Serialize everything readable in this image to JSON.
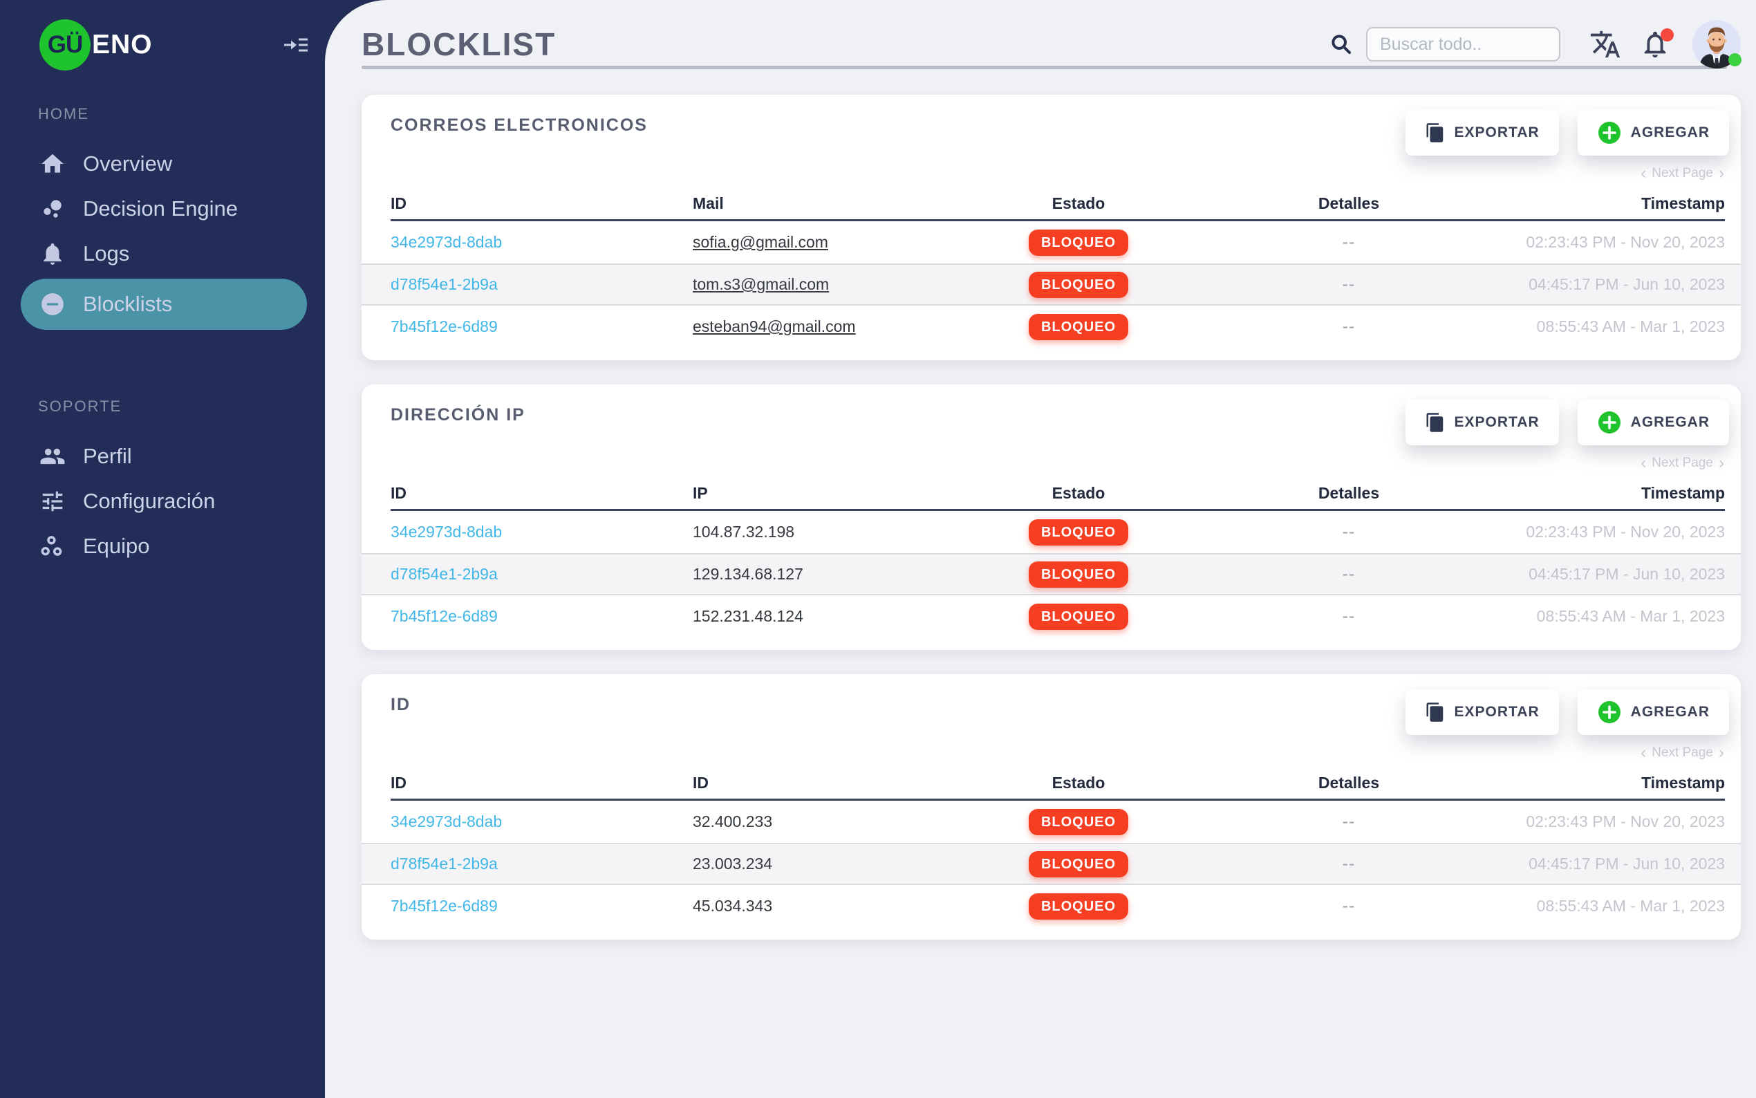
{
  "sidebar": {
    "logo": {
      "circle": "GÜ",
      "rest": "ENO"
    },
    "sections": [
      {
        "label": "HOME",
        "items": [
          {
            "label": "Overview",
            "icon": "home-icon",
            "active": false
          },
          {
            "label": "Decision Engine",
            "icon": "bubble-chart-icon",
            "active": false
          },
          {
            "label": "Logs",
            "icon": "bell-icon",
            "active": false
          },
          {
            "label": "Blocklists",
            "icon": "minus-circle-icon",
            "active": true
          }
        ]
      },
      {
        "label": "SOPORTE",
        "items": [
          {
            "label": "Perfil",
            "icon": "people-icon",
            "active": false
          },
          {
            "label": "Configuración",
            "icon": "sliders-icon",
            "active": false
          },
          {
            "label": "Equipo",
            "icon": "workspaces-icon",
            "active": false
          }
        ]
      }
    ]
  },
  "header": {
    "title": "BLOCKLIST",
    "search_placeholder": "Buscar todo.."
  },
  "buttons": {
    "export": "EXPORTAR",
    "add": "AGREGAR"
  },
  "pagination": {
    "prev": "‹",
    "label": "Next Page",
    "next": "›"
  },
  "cards": [
    {
      "title": "CORREOS ELECTRONICOS",
      "columns": [
        "ID",
        "Mail",
        "Estado",
        "Detalles",
        "Timestamp"
      ],
      "value_underline": true,
      "rows": [
        {
          "id": "34e2973d-8dab",
          "value": "sofia.g@gmail.com",
          "estado": "BLOQUEO",
          "detalles": "--",
          "timestamp": "02:23:43 PM - Nov 20, 2023"
        },
        {
          "id": "d78f54e1-2b9a",
          "value": "tom.s3@gmail.com",
          "estado": "BLOQUEO",
          "detalles": "--",
          "timestamp": "04:45:17 PM - Jun 10, 2023"
        },
        {
          "id": "7b45f12e-6d89",
          "value": "esteban94@gmail.com",
          "estado": "BLOQUEO",
          "detalles": "--",
          "timestamp": "08:55:43 AM - Mar 1, 2023"
        }
      ]
    },
    {
      "title": "DIRECCIÓN IP",
      "columns": [
        "ID",
        "IP",
        "Estado",
        "Detalles",
        "Timestamp"
      ],
      "value_underline": false,
      "rows": [
        {
          "id": "34e2973d-8dab",
          "value": "104.87.32.198",
          "estado": "BLOQUEO",
          "detalles": "--",
          "timestamp": "02:23:43 PM - Nov 20, 2023"
        },
        {
          "id": "d78f54e1-2b9a",
          "value": "129.134.68.127",
          "estado": "BLOQUEO",
          "detalles": "--",
          "timestamp": "04:45:17 PM - Jun 10, 2023"
        },
        {
          "id": "7b45f12e-6d89",
          "value": "152.231.48.124",
          "estado": "BLOQUEO",
          "detalles": "--",
          "timestamp": "08:55:43 AM - Mar 1, 2023"
        }
      ]
    },
    {
      "title": "ID",
      "columns": [
        "ID",
        "ID",
        "Estado",
        "Detalles",
        "Timestamp"
      ],
      "value_underline": false,
      "rows": [
        {
          "id": "34e2973d-8dab",
          "value": "32.400.233",
          "estado": "BLOQUEO",
          "detalles": "--",
          "timestamp": "02:23:43 PM - Nov 20, 2023"
        },
        {
          "id": "d78f54e1-2b9a",
          "value": "23.003.234",
          "estado": "BLOQUEO",
          "detalles": "--",
          "timestamp": "04:45:17 PM - Jun 10, 2023"
        },
        {
          "id": "7b45f12e-6d89",
          "value": "45.034.343",
          "estado": "BLOQUEO",
          "detalles": "--",
          "timestamp": "08:55:43 AM - Mar 1, 2023"
        }
      ]
    }
  ],
  "colors": {
    "badge_red": "#f63e22",
    "link_blue": "#41b7e8",
    "accent_green": "#1fc32d",
    "sidebar_active": "#4b93a7",
    "sidebar_bg": "#222e57"
  }
}
